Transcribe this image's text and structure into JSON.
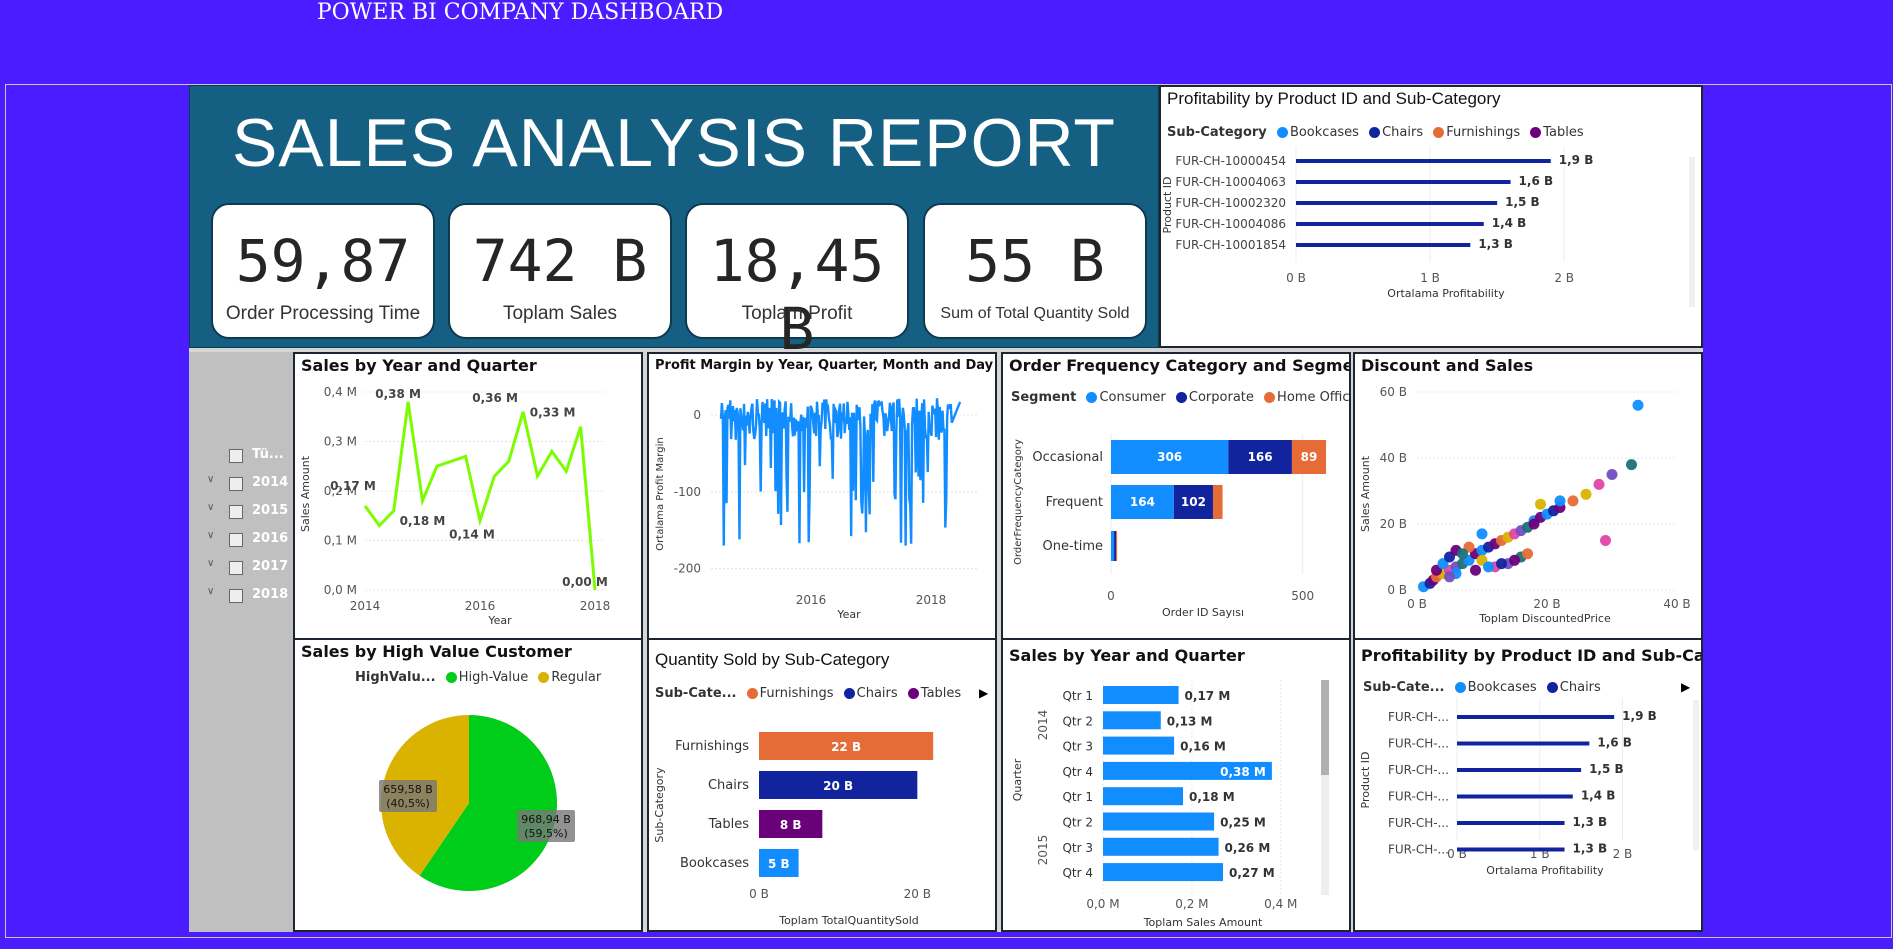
{
  "page_title": "POWER BI COMPANY DASHBOARD",
  "report_title": "SALES ANALYSIS REPORT",
  "kpis": [
    {
      "value": "59,87",
      "label": "Order Processing Time"
    },
    {
      "value": "742 B",
      "label": "Toplam Sales"
    },
    {
      "value": "18,45 B",
      "label": "Toplam Profit"
    },
    {
      "value": "55 B",
      "label": "Sum of Total Quantity Sold"
    }
  ],
  "slicer": {
    "items": [
      "Tü...",
      "2014",
      "2015",
      "2016",
      "2017",
      "2018"
    ]
  },
  "colors": {
    "bookcases": "#118dff",
    "chairs": "#12239e",
    "furnishings": "#e66c37",
    "tables": "#6b007b",
    "line_green": "#7cfc00",
    "consumer": "#118dff",
    "corporate": "#12239e",
    "home_office": "#e66c37",
    "high_value": "#00cc1a",
    "regular": "#d9b300",
    "header": "#156082",
    "background": "#4a1cff"
  },
  "prof_top": {
    "title": "Profitability by Product ID and Sub-Category",
    "legend_title": "Sub-Category",
    "legend": [
      "Bookcases",
      "Chairs",
      "Furnishings",
      "Tables"
    ],
    "ylabel": "Product ID",
    "xlabel": "Ortalama Profitability",
    "ticks": [
      "0 B",
      "1 B",
      "2 B"
    ]
  },
  "sales_yq_line": {
    "title": "Sales by Year and Quarter",
    "ylabel": "Sales Amount",
    "xlabel": "Year",
    "yticks": [
      "0,4 M",
      "0,3 M",
      "0,2 M",
      "0,1 M",
      "0,0 M"
    ],
    "xticks": [
      "2014",
      "2016",
      "2018"
    ]
  },
  "profit_margin": {
    "title": "Profit Margin by Year, Quarter, Month and Day",
    "ylabel": "Ortalama Profit Margin",
    "xlabel": "Year",
    "yticks": [
      "0",
      "-100",
      "-200"
    ],
    "xticks": [
      "2016",
      "2018"
    ]
  },
  "order_freq": {
    "title": "Order Frequency Category and Segment",
    "legend_title": "Segment",
    "legend": [
      "Consumer",
      "Corporate",
      "Home Office"
    ],
    "ylabel": "OrderFrequencyCategory",
    "xlabel": "Order ID Sayısı",
    "xticks": [
      "0",
      "500"
    ]
  },
  "discount": {
    "title": "Discount and Sales",
    "ylabel": "Sales Amount",
    "xlabel": "Toplam DiscountedPrice",
    "yticks": [
      "60 B",
      "40 B",
      "20 B",
      "0 B"
    ],
    "xticks": [
      "0 B",
      "20 B",
      "40 B"
    ]
  },
  "high_value": {
    "title": "Sales by High Value Customer",
    "legend_title": "HighValu...",
    "legend": [
      "High-Value",
      "Regular"
    ],
    "label_regular_1": "659,58 B",
    "label_regular_2": "(40,5%)",
    "label_high_1": "968,94 B",
    "label_high_2": "(59,5%)"
  },
  "qty_subcat": {
    "title": "Quantity Sold by Sub-Category",
    "legend_title": "Sub-Cate...",
    "legend": [
      "Furnishings",
      "Chairs",
      "Tables"
    ],
    "ylabel": "Sub-Category",
    "xlabel": "Toplam TotalQuantitySold",
    "xticks": [
      "0 B",
      "20 B"
    ]
  },
  "sales_yq_bar": {
    "title": "Sales by Year and Quarter",
    "ylabel": "Quarter",
    "xlabel": "Toplam Sales Amount",
    "xticks": [
      "0,0 M",
      "0,2 M",
      "0,4 M"
    ],
    "years": [
      "2014",
      "2015"
    ]
  },
  "prof_bottom": {
    "title": "Profitability by Product ID and Sub-Category",
    "legend_title": "Sub-Cate...",
    "legend": [
      "Bookcases",
      "Chairs"
    ],
    "ylabel": "Product ID",
    "xlabel": "Ortalama Profitability",
    "ticks": [
      "0 B",
      "1 B",
      "2 B"
    ]
  },
  "chart_data": [
    {
      "id": "prof_top",
      "type": "bar",
      "orientation": "horizontal",
      "title": "Profitability by Product ID and Sub-Category",
      "categories": [
        "FUR-CH-10000454",
        "FUR-CH-10004063",
        "FUR-CH-10002320",
        "FUR-CH-10004086",
        "FUR-CH-10001854"
      ],
      "values": [
        1.9,
        1.6,
        1.5,
        1.4,
        1.3
      ],
      "labels": [
        "1,9 B",
        "1,6 B",
        "1,5 B",
        "1,4 B",
        "1,3 B"
      ],
      "xlim": [
        0,
        2.2
      ],
      "unit": "B"
    },
    {
      "id": "sales_yq_line",
      "type": "line",
      "title": "Sales by Year and Quarter",
      "x": [
        2014.0,
        2014.25,
        2014.5,
        2014.75,
        2015.0,
        2015.25,
        2015.5,
        2015.75,
        2016.0,
        2016.25,
        2016.5,
        2016.75,
        2017.0,
        2017.25,
        2017.5,
        2017.75,
        2018.0
      ],
      "values": [
        0.17,
        0.13,
        0.16,
        0.38,
        0.18,
        0.25,
        0.26,
        0.27,
        0.14,
        0.23,
        0.26,
        0.36,
        0.23,
        0.28,
        0.24,
        0.33,
        0.0
      ],
      "annotations": [
        {
          "x": 2014.0,
          "label": "0,17 M"
        },
        {
          "x": 2014.75,
          "label": "0,38 M"
        },
        {
          "x": 2015.0,
          "label": "0,18 M"
        },
        {
          "x": 2016.0,
          "label": "0,14 M"
        },
        {
          "x": 2016.75,
          "label": "0,36 M"
        },
        {
          "x": 2017.75,
          "label": "0,33 M"
        },
        {
          "x": 2018.0,
          "label": "0,00 M"
        }
      ],
      "ylim": [
        0,
        0.4
      ],
      "xlim": [
        2014,
        2018
      ],
      "unit": "M"
    },
    {
      "id": "profit_margin",
      "type": "line",
      "title": "Profit Margin by Year, Quarter, Month and Day",
      "note_values_dense": true,
      "ylim": [
        -220,
        30
      ],
      "xlim": [
        2014.5,
        2018.8
      ]
    },
    {
      "id": "order_freq",
      "type": "bar",
      "orientation": "horizontal",
      "stacked": true,
      "title": "Order Frequency Category and Segment",
      "categories": [
        "Occasional",
        "Frequent",
        "One-time"
      ],
      "series": [
        {
          "name": "Consumer",
          "values": [
            306,
            164,
            8
          ],
          "labels": [
            "306",
            "164",
            ""
          ]
        },
        {
          "name": "Corporate",
          "values": [
            166,
            102,
            5
          ],
          "labels": [
            "166",
            "102",
            ""
          ]
        },
        {
          "name": "Home Office",
          "values": [
            89,
            25,
            3
          ],
          "labels": [
            "89",
            "",
            ""
          ]
        }
      ],
      "xlim": [
        0,
        600
      ]
    },
    {
      "id": "discount",
      "type": "scatter",
      "title": "Discount and Sales",
      "x": [
        1,
        2,
        2.5,
        3,
        4,
        5,
        6,
        7,
        8,
        9,
        10,
        11,
        12,
        13,
        14,
        15,
        16,
        17,
        18,
        19,
        20,
        21,
        22,
        24,
        26,
        28,
        30,
        33,
        34,
        3,
        4,
        5,
        6,
        8,
        10,
        12,
        14,
        16,
        6,
        9,
        11,
        13,
        15,
        17,
        19,
        29,
        5,
        7,
        10,
        18,
        22
      ],
      "y": [
        1,
        2,
        3,
        4,
        5,
        6,
        7,
        8,
        9,
        11,
        12,
        13,
        14,
        15,
        16,
        17,
        18,
        19,
        21,
        22,
        23,
        24,
        25,
        27,
        29,
        32,
        35,
        38,
        56,
        6,
        8,
        10,
        12,
        13,
        9,
        7,
        8,
        10,
        5,
        6,
        7,
        8,
        9,
        11,
        26,
        15,
        4,
        11,
        17,
        20,
        27
      ],
      "ylim": [
        0,
        60
      ],
      "xlim": [
        0,
        40
      ],
      "unit": "B"
    },
    {
      "id": "high_value",
      "type": "pie",
      "title": "Sales by High Value Customer",
      "categories": [
        "High-Value",
        "Regular"
      ],
      "values": [
        968.94,
        659.58
      ],
      "percents": [
        59.5,
        40.5
      ]
    },
    {
      "id": "qty_subcat",
      "type": "bar",
      "orientation": "horizontal",
      "title": "Quantity Sold by Sub-Category",
      "categories": [
        "Furnishings",
        "Chairs",
        "Tables",
        "Bookcases"
      ],
      "values": [
        22,
        20,
        8,
        5
      ],
      "labels": [
        "22 B",
        "20 B",
        "8 B",
        "5 B"
      ],
      "xlim": [
        0,
        24
      ],
      "unit": "B"
    },
    {
      "id": "sales_yq_bar",
      "type": "bar",
      "orientation": "horizontal",
      "title": "Sales by Year and Quarter",
      "categories": [
        "Qtr 1",
        "Qtr 2",
        "Qtr 3",
        "Qtr 4",
        "Qtr 1",
        "Qtr 2",
        "Qtr 3",
        "Qtr 4"
      ],
      "groups": [
        "2014",
        "2014",
        "2014",
        "2014",
        "2015",
        "2015",
        "2015",
        "2015"
      ],
      "values": [
        0.17,
        0.13,
        0.16,
        0.38,
        0.18,
        0.25,
        0.26,
        0.27
      ],
      "labels": [
        "0,17 M",
        "0,13 M",
        "0,16 M",
        "0,38 M",
        "0,18 M",
        "0,25 M",
        "0,26 M",
        "0,27 M"
      ],
      "xlim": [
        0,
        0.45
      ],
      "unit": "M"
    },
    {
      "id": "prof_bottom",
      "type": "bar",
      "orientation": "horizontal",
      "title": "Profitability by Product ID and Sub-Category",
      "categories": [
        "FUR-CH-...",
        "FUR-CH-...",
        "FUR-CH-...",
        "FUR-CH-...",
        "FUR-CH-...",
        "FUR-CH-..."
      ],
      "values": [
        1.9,
        1.6,
        1.5,
        1.4,
        1.3,
        1.3
      ],
      "labels": [
        "1,9 B",
        "1,6 B",
        "1,5 B",
        "1,4 B",
        "1,3 B",
        "1,3 B"
      ],
      "xlim": [
        0,
        2.2
      ],
      "unit": "B"
    }
  ]
}
